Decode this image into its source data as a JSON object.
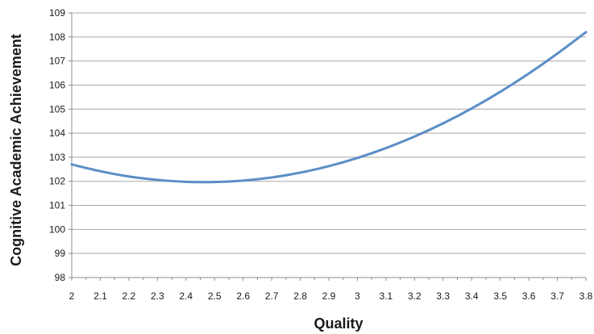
{
  "chart_data": {
    "type": "line",
    "title": "",
    "xlabel": "Quality",
    "ylabel": "Cognitive Academic Achievement",
    "xlim": [
      2,
      3.8
    ],
    "ylim": [
      98,
      109
    ],
    "grid": "horizontal",
    "line_color": "#5b8ec6",
    "x_ticks": [
      "2",
      "2.1",
      "2.2",
      "2.3",
      "2.4",
      "2.5",
      "2.6",
      "2.7",
      "2.8",
      "2.9",
      "3",
      "3.1",
      "3.2",
      "3.3",
      "3.4",
      "3.5",
      "3.6",
      "3.7",
      "3.8"
    ],
    "y_ticks": [
      "98",
      "99",
      "100",
      "101",
      "102",
      "103",
      "104",
      "105",
      "106",
      "107",
      "108",
      "109"
    ],
    "series": [
      {
        "x": [
          2.0,
          2.1,
          2.2,
          2.3,
          2.4,
          2.5,
          2.6,
          2.7,
          2.8,
          2.9,
          3.0,
          3.1,
          3.2,
          3.3,
          3.4,
          3.5,
          3.6,
          3.7,
          3.8
        ],
        "y": [
          102.7,
          102.42,
          102.2,
          102.06,
          101.98,
          101.97,
          102.03,
          102.16,
          102.36,
          102.63,
          102.97,
          103.38,
          103.86,
          104.41,
          105.03,
          105.72,
          106.48,
          107.31,
          108.2
        ]
      }
    ]
  }
}
